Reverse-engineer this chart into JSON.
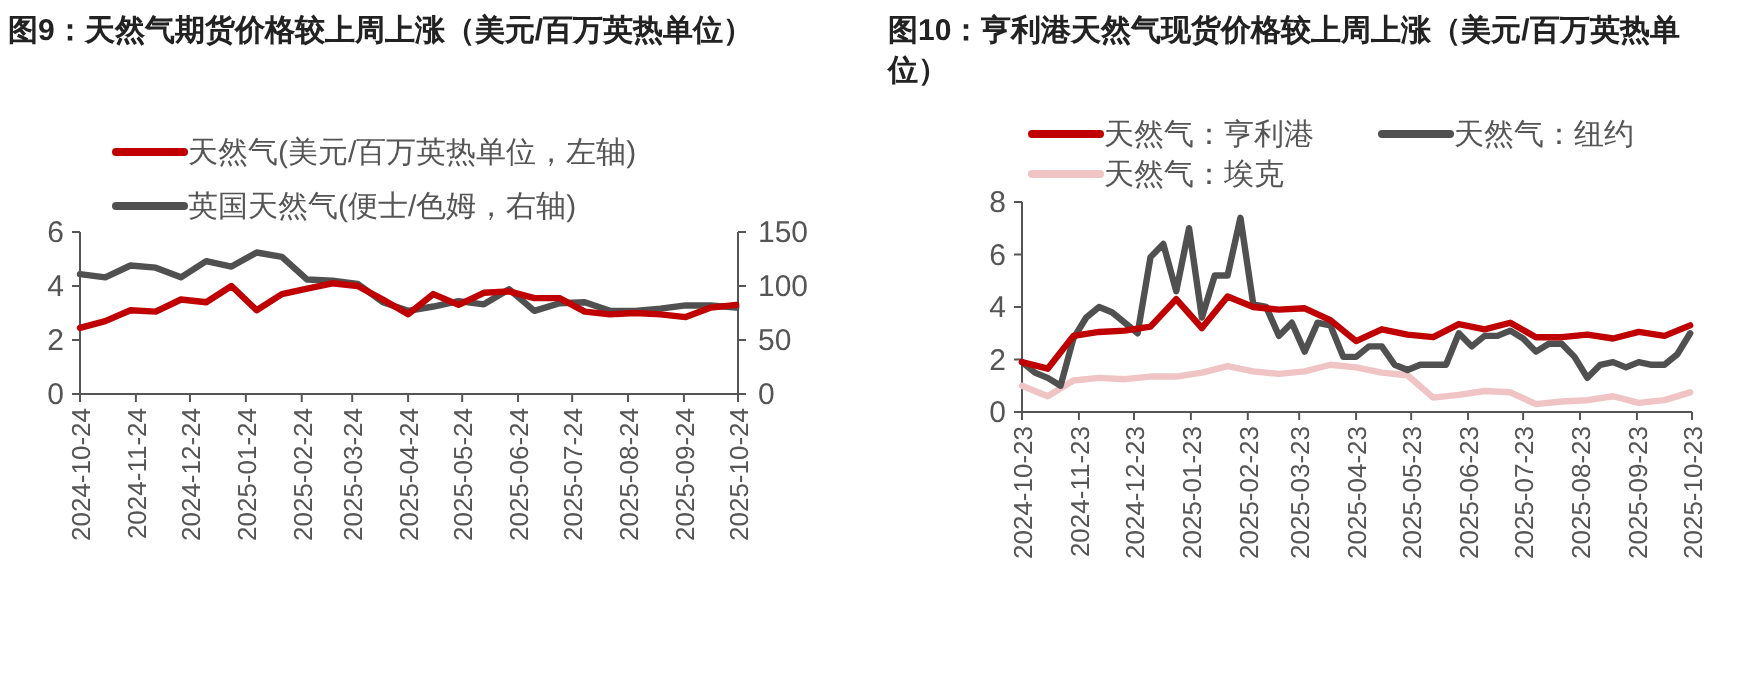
{
  "chart_data": [
    {
      "type": "line",
      "title": "图9：天然气期货价格较上周上涨（美元/百万英热单位）",
      "legend": "top",
      "grid": false,
      "xlim": [
        "2024-10-24",
        "2025-10-24"
      ],
      "xticks": [
        "2024-10-24",
        "2024-11-24",
        "2024-12-24",
        "2025-01-24",
        "2025-02-24",
        "2025-03-24",
        "2025-04-24",
        "2025-05-24",
        "2025-06-24",
        "2025-07-24",
        "2025-08-24",
        "2025-09-24",
        "2025-10-24"
      ],
      "ylim": [
        0,
        6
      ],
      "yticks": [
        0,
        2,
        4,
        6
      ],
      "y2lim": [
        0,
        150
      ],
      "y2ticks": [
        0,
        50,
        100,
        150
      ],
      "series": [
        {
          "name": "天然气(美元/百万英热单位，左轴)",
          "color": "#c00000",
          "x": [
            "2024-10-24",
            "2024-11-07",
            "2024-11-21",
            "2024-12-05",
            "2024-12-19",
            "2025-01-02",
            "2025-01-16",
            "2025-01-30",
            "2025-02-13",
            "2025-02-27",
            "2025-03-13",
            "2025-03-27",
            "2025-04-10",
            "2025-04-24",
            "2025-05-08",
            "2025-05-22",
            "2025-06-05",
            "2025-06-19",
            "2025-07-03",
            "2025-07-17",
            "2025-07-31",
            "2025-08-14",
            "2025-08-28",
            "2025-09-11",
            "2025-09-25",
            "2025-10-09",
            "2025-10-23"
          ],
          "values": [
            2.45,
            2.7,
            3.1,
            3.05,
            3.5,
            3.4,
            4.0,
            3.1,
            3.7,
            3.9,
            4.1,
            4.0,
            3.5,
            2.95,
            3.7,
            3.3,
            3.75,
            3.8,
            3.55,
            3.55,
            3.05,
            2.95,
            3.0,
            2.95,
            2.85,
            3.2,
            3.3
          ]
        },
        {
          "name": "英国天然气(便士/色姆，右轴)",
          "color": "#505050",
          "axis": "y2",
          "x": [
            "2024-10-24",
            "2024-11-07",
            "2024-11-21",
            "2024-12-05",
            "2024-12-19",
            "2025-01-02",
            "2025-01-16",
            "2025-01-30",
            "2025-02-13",
            "2025-02-27",
            "2025-03-13",
            "2025-03-27",
            "2025-04-10",
            "2025-04-24",
            "2025-05-08",
            "2025-05-22",
            "2025-06-05",
            "2025-06-19",
            "2025-07-03",
            "2025-07-17",
            "2025-07-31",
            "2025-08-14",
            "2025-08-28",
            "2025-09-11",
            "2025-09-25",
            "2025-10-09",
            "2025-10-23"
          ],
          "values": [
            111,
            108,
            119,
            117,
            108,
            123,
            118,
            131,
            127,
            106,
            105,
            102,
            85,
            77,
            81,
            86,
            83,
            97,
            77,
            84,
            85,
            77,
            77,
            79,
            82,
            82,
            80
          ]
        }
      ]
    },
    {
      "type": "line",
      "title": "图10：亨利港天然气现货价格较上周上涨（美元/百万英热单位）",
      "legend": "top",
      "grid": false,
      "xlim": [
        "2024-10-23",
        "2025-10-23"
      ],
      "xticks": [
        "2024-10-23",
        "2024-11-23",
        "2024-12-23",
        "2025-01-23",
        "2025-02-23",
        "2025-03-23",
        "2025-04-23",
        "2025-05-23",
        "2025-06-23",
        "2025-07-23",
        "2025-08-23",
        "2025-09-23",
        "2025-10-23"
      ],
      "ylim": [
        0,
        8
      ],
      "yticks": [
        0,
        2,
        4,
        6,
        8
      ],
      "series": [
        {
          "name": "天然气：亨利港",
          "color": "#c00000",
          "x": [
            "2024-10-23",
            "2024-11-06",
            "2024-11-20",
            "2024-12-04",
            "2024-12-18",
            "2025-01-01",
            "2025-01-15",
            "2025-01-29",
            "2025-02-12",
            "2025-02-26",
            "2025-03-12",
            "2025-03-26",
            "2025-04-09",
            "2025-04-23",
            "2025-05-07",
            "2025-05-21",
            "2025-06-04",
            "2025-06-18",
            "2025-07-02",
            "2025-07-16",
            "2025-07-30",
            "2025-08-13",
            "2025-08-27",
            "2025-09-10",
            "2025-09-24",
            "2025-10-08",
            "2025-10-22"
          ],
          "values": [
            1.9,
            1.65,
            2.9,
            3.05,
            3.1,
            3.25,
            4.3,
            3.2,
            4.4,
            4.0,
            3.9,
            3.95,
            3.5,
            2.7,
            3.15,
            2.95,
            2.85,
            3.35,
            3.15,
            3.4,
            2.85,
            2.85,
            2.95,
            2.8,
            3.05,
            2.9,
            3.3
          ]
        },
        {
          "name": "天然气：纽约",
          "color": "#505050",
          "x": [
            "2024-10-23",
            "2024-10-30",
            "2024-11-06",
            "2024-11-13",
            "2024-11-20",
            "2024-11-27",
            "2024-12-04",
            "2024-12-11",
            "2024-12-18",
            "2024-12-25",
            "2025-01-01",
            "2025-01-08",
            "2025-01-15",
            "2025-01-22",
            "2025-01-29",
            "2025-02-05",
            "2025-02-12",
            "2025-02-19",
            "2025-02-26",
            "2025-03-05",
            "2025-03-12",
            "2025-03-19",
            "2025-03-26",
            "2025-04-02",
            "2025-04-09",
            "2025-04-16",
            "2025-04-23",
            "2025-04-30",
            "2025-05-07",
            "2025-05-14",
            "2025-05-21",
            "2025-05-28",
            "2025-06-04",
            "2025-06-11",
            "2025-06-18",
            "2025-06-25",
            "2025-07-02",
            "2025-07-09",
            "2025-07-16",
            "2025-07-23",
            "2025-07-30",
            "2025-08-06",
            "2025-08-13",
            "2025-08-20",
            "2025-08-27",
            "2025-09-03",
            "2025-09-10",
            "2025-09-17",
            "2025-09-24",
            "2025-10-01",
            "2025-10-08",
            "2025-10-15",
            "2025-10-22"
          ],
          "values": [
            1.9,
            1.5,
            1.3,
            1.0,
            2.8,
            3.6,
            4.0,
            3.8,
            3.4,
            3.0,
            5.9,
            6.4,
            4.6,
            7.0,
            3.6,
            5.2,
            5.2,
            7.4,
            4.1,
            4.0,
            2.9,
            3.4,
            2.3,
            3.4,
            3.3,
            2.1,
            2.1,
            2.5,
            2.5,
            1.8,
            1.6,
            1.8,
            1.8,
            1.8,
            3.0,
            2.5,
            2.9,
            2.9,
            3.1,
            2.8,
            2.3,
            2.6,
            2.6,
            2.1,
            1.3,
            1.8,
            1.9,
            1.7,
            1.9,
            1.8,
            1.8,
            2.2,
            3.0
          ]
        },
        {
          "name": "天然气：埃克",
          "color": "#f0c4c4",
          "x": [
            "2024-10-23",
            "2024-11-06",
            "2024-11-20",
            "2024-12-04",
            "2024-12-18",
            "2025-01-01",
            "2025-01-15",
            "2025-01-29",
            "2025-02-12",
            "2025-02-26",
            "2025-03-12",
            "2025-03-26",
            "2025-04-09",
            "2025-04-23",
            "2025-05-07",
            "2025-05-21",
            "2025-06-04",
            "2025-06-18",
            "2025-07-02",
            "2025-07-16",
            "2025-07-30",
            "2025-08-13",
            "2025-08-27",
            "2025-09-10",
            "2025-09-24",
            "2025-10-08",
            "2025-10-22"
          ],
          "values": [
            1.0,
            0.6,
            1.2,
            1.3,
            1.25,
            1.35,
            1.35,
            1.5,
            1.75,
            1.55,
            1.45,
            1.55,
            1.8,
            1.7,
            1.5,
            1.4,
            0.55,
            0.65,
            0.8,
            0.75,
            0.3,
            0.4,
            0.45,
            0.6,
            0.35,
            0.45,
            0.75
          ]
        }
      ]
    }
  ]
}
